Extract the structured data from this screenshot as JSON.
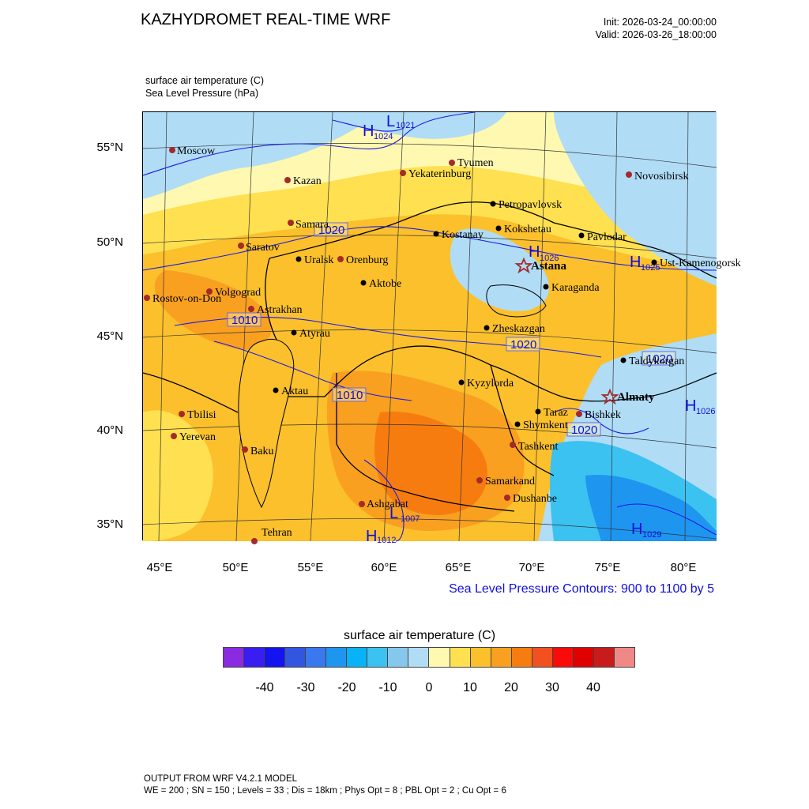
{
  "header": {
    "title": "KAZHYDROMET REAL-TIME WRF",
    "init": "Init: 2026-03-24_00:00:00",
    "valid": "Valid: 2026-03-26_18:00:00",
    "var1": "surface air temperature   (C)",
    "var2": "Sea Level Pressure   (hPa)"
  },
  "axes": {
    "lat_labels": [
      "55°N",
      "50°N",
      "45°N",
      "40°N",
      "35°N"
    ],
    "lon_labels": [
      "45°E",
      "50°E",
      "55°E",
      "60°E",
      "65°E",
      "70°E",
      "75°E",
      "80°E"
    ]
  },
  "colors": {
    "contour_line": "#1a1ae6",
    "city_capital": "#a52a2a",
    "city_kz": "#000000",
    "base_fill": "#f9c23c"
  },
  "cities": [
    {
      "name": "Moscow",
      "type": "foreign"
    },
    {
      "name": "Kazan",
      "type": "foreign"
    },
    {
      "name": "Tyumen",
      "type": "foreign"
    },
    {
      "name": "Yekaterinburg",
      "type": "foreign"
    },
    {
      "name": "Novosibirsk",
      "type": "foreign"
    },
    {
      "name": "Samara",
      "type": "foreign"
    },
    {
      "name": "Saratov",
      "type": "foreign"
    },
    {
      "name": "Orenburg",
      "type": "foreign"
    },
    {
      "name": "Volgograd",
      "type": "foreign"
    },
    {
      "name": "Rostov-on-Don",
      "type": "foreign"
    },
    {
      "name": "Astrakhan",
      "type": "foreign"
    },
    {
      "name": "Tbilisi",
      "type": "foreign"
    },
    {
      "name": "Yerevan",
      "type": "foreign"
    },
    {
      "name": "Baku",
      "type": "foreign"
    },
    {
      "name": "Tehran",
      "type": "foreign"
    },
    {
      "name": "Ashgabat",
      "type": "foreign"
    },
    {
      "name": "Tashkent",
      "type": "foreign"
    },
    {
      "name": "Samarkand",
      "type": "foreign"
    },
    {
      "name": "Dushanbe",
      "type": "foreign"
    },
    {
      "name": "Bishkek",
      "type": "foreign"
    },
    {
      "name": "Petropavlovsk",
      "type": "kz"
    },
    {
      "name": "Kostanay",
      "type": "kz"
    },
    {
      "name": "Kokshetau",
      "type": "kz"
    },
    {
      "name": "Pavlodar",
      "type": "kz"
    },
    {
      "name": "Uralsk",
      "type": "kz"
    },
    {
      "name": "Aktobe",
      "type": "kz"
    },
    {
      "name": "Ust-Kamenogorsk",
      "type": "kz"
    },
    {
      "name": "Karaganda",
      "type": "kz"
    },
    {
      "name": "Atyrau",
      "type": "kz"
    },
    {
      "name": "Zheskazgan",
      "type": "kz"
    },
    {
      "name": "Taldykorgan",
      "type": "kz"
    },
    {
      "name": "Aktau",
      "type": "kz"
    },
    {
      "name": "Kyzylorda",
      "type": "kz"
    },
    {
      "name": "Taraz",
      "type": "kz"
    },
    {
      "name": "Shymkent",
      "type": "kz"
    },
    {
      "name": "Astana",
      "type": "capital"
    },
    {
      "name": "Almaty",
      "type": "capital"
    }
  ],
  "pressure_labels": {
    "p1021": "1021",
    "p1024": "1024",
    "p1026": "1026",
    "p1025": "1025",
    "p1026b": "1026",
    "p1007": "1007",
    "p1029": "1029",
    "p1012": "1012",
    "c1020a": "1020",
    "c1020b": "1020",
    "c1020c": "1020",
    "c1020d": "1020",
    "c1010a": "1010",
    "c1010b": "1010"
  },
  "slp_note": "Sea Level Pressure Contours: 900 to 1100 by 5",
  "colorbar": {
    "title": "surface air temperature  (C)",
    "colors": [
      "#8a2be2",
      "#3a1df0",
      "#1414f0",
      "#3256e0",
      "#3a78ee",
      "#1e96f0",
      "#08b2f6",
      "#3cc2f0",
      "#86c8ec",
      "#b0dcf6",
      "#fff8b0",
      "#ffe050",
      "#fbc02c",
      "#f9a020",
      "#f77c10",
      "#f15020",
      "#fb0a0a",
      "#e00000",
      "#c81c1c",
      "#f08888"
    ],
    "ticks": [
      "-40",
      "-30",
      "-20",
      "-10",
      "0",
      "10",
      "20",
      "30",
      "40"
    ]
  },
  "footer": {
    "line1": "OUTPUT FROM WRF V4.2.1 MODEL",
    "line2": "WE = 200 ; SN = 150 ; Levels = 33 ; Dis = 18km ; Phys Opt = 8 ; PBL Opt = 2 ; Cu Opt = 6"
  }
}
